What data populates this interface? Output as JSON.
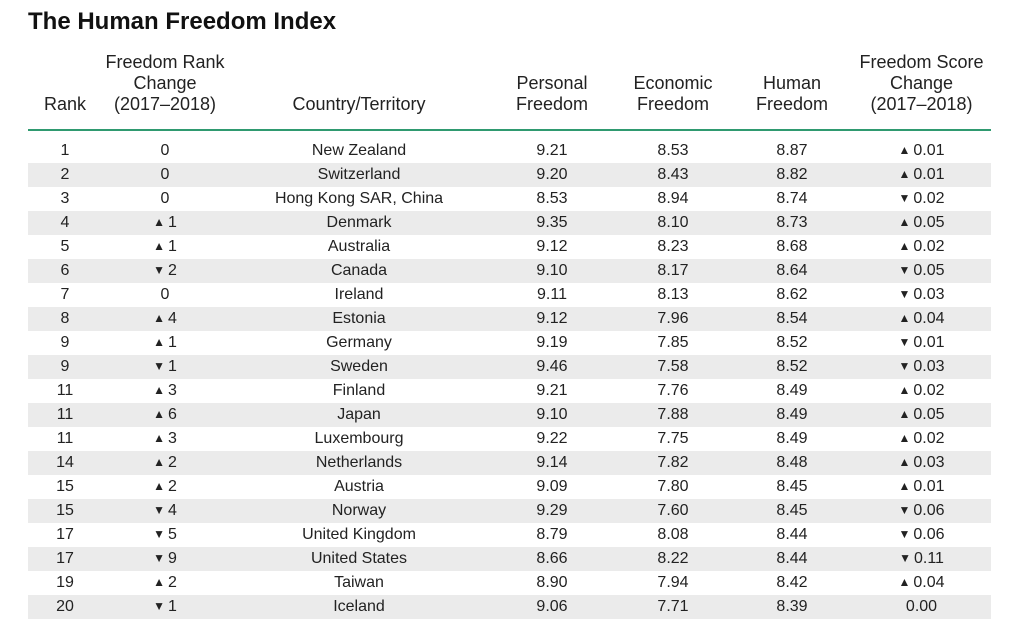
{
  "title": "The Human Freedom Index",
  "colors": {
    "header_rule": "#2f9a70",
    "row_shade": "#ebebeb"
  },
  "chart_data": {
    "type": "table",
    "title": "The Human Freedom Index",
    "columns": [
      "Rank",
      "Freedom Rank\nChange\n(2017–2018)",
      "Country/Territory",
      "Personal\nFreedom",
      "Economic\nFreedom",
      "Human\nFreedom",
      "Freedom Score\nChange\n(2017–2018)"
    ],
    "rows": [
      [
        "1",
        "0",
        "New Zealand",
        "9.21",
        "8.53",
        "8.87",
        "▲ 0.01"
      ],
      [
        "2",
        "0",
        "Switzerland",
        "9.20",
        "8.43",
        "8.82",
        "▲ 0.01"
      ],
      [
        "3",
        "0",
        "Hong Kong SAR, China",
        "8.53",
        "8.94",
        "8.74",
        "▼ 0.02"
      ],
      [
        "4",
        "▲ 1",
        "Denmark",
        "9.35",
        "8.10",
        "8.73",
        "▲ 0.05"
      ],
      [
        "5",
        "▲ 1",
        "Australia",
        "9.12",
        "8.23",
        "8.68",
        "▲ 0.02"
      ],
      [
        "6",
        "▼ 2",
        "Canada",
        "9.10",
        "8.17",
        "8.64",
        "▼ 0.05"
      ],
      [
        "7",
        "0",
        "Ireland",
        "9.11",
        "8.13",
        "8.62",
        "▼ 0.03"
      ],
      [
        "8",
        "▲ 4",
        "Estonia",
        "9.12",
        "7.96",
        "8.54",
        "▲ 0.04"
      ],
      [
        "9",
        "▲ 1",
        "Germany",
        "9.19",
        "7.85",
        "8.52",
        "▼ 0.01"
      ],
      [
        "9",
        "▼ 1",
        "Sweden",
        "9.46",
        "7.58",
        "8.52",
        "▼ 0.03"
      ],
      [
        "11",
        "▲ 3",
        "Finland",
        "9.21",
        "7.76",
        "8.49",
        "▲ 0.02"
      ],
      [
        "11",
        "▲ 6",
        "Japan",
        "9.10",
        "7.88",
        "8.49",
        "▲ 0.05"
      ],
      [
        "11",
        "▲ 3",
        "Luxembourg",
        "9.22",
        "7.75",
        "8.49",
        "▲ 0.02"
      ],
      [
        "14",
        "▲ 2",
        "Netherlands",
        "9.14",
        "7.82",
        "8.48",
        "▲ 0.03"
      ],
      [
        "15",
        "▲ 2",
        "Austria",
        "9.09",
        "7.80",
        "8.45",
        "▲ 0.01"
      ],
      [
        "15",
        "▼ 4",
        "Norway",
        "9.29",
        "7.60",
        "8.45",
        "▼ 0.06"
      ],
      [
        "17",
        "▼ 5",
        "United Kingdom",
        "8.79",
        "8.08",
        "8.44",
        "▼ 0.06"
      ],
      [
        "17",
        "▼ 9",
        "United States",
        "8.66",
        "8.22",
        "8.44",
        "▼ 0.11"
      ],
      [
        "19",
        "▲ 2",
        "Taiwan",
        "8.90",
        "7.94",
        "8.42",
        "▲ 0.04"
      ],
      [
        "20",
        "▼ 1",
        "Iceland",
        "9.06",
        "7.71",
        "8.39",
        "0.00"
      ]
    ]
  }
}
